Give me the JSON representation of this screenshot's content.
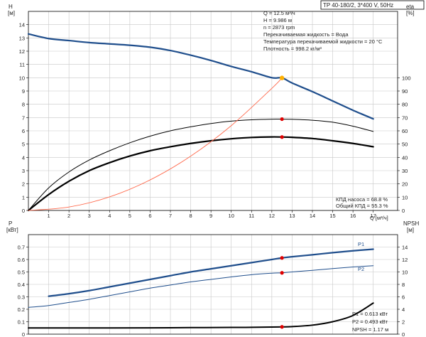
{
  "title_box": "TP 40-180/2, 3*400 V, 50Hz",
  "colors": {
    "head": "#1f4e8c",
    "eta": "#000000",
    "power": "#1f4e8c",
    "system": "#ff6a4d",
    "op_point": "#e00000",
    "op_point_head": "#ffb000",
    "grid": "#c8c8c8",
    "axis": "#000000"
  },
  "top": {
    "ylabel_unit": "H\n[м]",
    "y2label_unit": "eta\n[%]",
    "xlabel": "Q [м³/ч]",
    "info": [
      "Q = 12.5 м³/ч",
      "H = 9.986 м",
      "n = 2873 rpm",
      "Перекачиваемая жидкость = Вода",
      "Температура перекачиваемой жидкости = 20 °C",
      "Плотность = 998.2 кг/м³"
    ],
    "eff_info": [
      "КПД насоса = 68.8 %",
      "Общий КПД = 55.3 %"
    ]
  },
  "bottom": {
    "ylabel_unit": "P\n[кВт]",
    "y2label_unit": "NPSH\n[м]",
    "info": [
      "P1 = 0.613 кВт",
      "P2 = 0.493 кВт",
      "NPSH = 1.17 м"
    ],
    "label_p1": "P1",
    "label_p2": "P2"
  },
  "chart_data": [
    {
      "type": "line",
      "title": "TP 40-180/2, 3*400 V, 50Hz",
      "xlabel": "Q [м³/ч]",
      "ylabel": "H [м]",
      "y2label": "eta [%]",
      "xlim": [
        0,
        18.2
      ],
      "ylim": [
        0,
        15
      ],
      "y2lim": [
        0,
        150
      ],
      "x_ticks": [
        1,
        2,
        3,
        4,
        5,
        6,
        7,
        8,
        9,
        10,
        11,
        12,
        13,
        14,
        15,
        16,
        17
      ],
      "y_ticks": [
        0,
        1,
        2,
        3,
        4,
        5,
        6,
        7,
        8,
        9,
        10,
        11,
        12,
        13,
        14
      ],
      "y2_ticks": [
        0,
        10,
        20,
        30,
        40,
        50,
        60,
        70,
        80,
        90,
        100
      ],
      "grid": true,
      "series": [
        {
          "name": "H",
          "axis": "y",
          "x": [
            0,
            1,
            2,
            3,
            4,
            5,
            6,
            7,
            8,
            9,
            10,
            11,
            12,
            12.5,
            13,
            14,
            15,
            16,
            17
          ],
          "y": [
            13.3,
            12.95,
            12.8,
            12.65,
            12.55,
            12.45,
            12.3,
            12.05,
            11.7,
            11.3,
            10.85,
            10.45,
            10.0,
            9.986,
            9.6,
            8.95,
            8.25,
            7.55,
            6.9
          ]
        },
        {
          "name": "eta pump",
          "axis": "y2",
          "x": [
            0,
            1,
            2,
            3,
            4,
            5,
            6,
            7,
            8,
            9,
            10,
            11,
            12,
            12.5,
            13,
            14,
            15,
            16,
            17
          ],
          "y": [
            0,
            17,
            29,
            38,
            45,
            51,
            56,
            60,
            63,
            65.5,
            67.3,
            68.3,
            68.8,
            68.8,
            68.7,
            68,
            66.5,
            63.5,
            59.5
          ]
        },
        {
          "name": "eta total",
          "axis": "y2",
          "x": [
            0,
            1,
            2,
            3,
            4,
            5,
            6,
            7,
            8,
            9,
            10,
            11,
            12,
            12.5,
            13,
            14,
            15,
            16,
            17
          ],
          "y": [
            0,
            12,
            22,
            30,
            36,
            41,
            45,
            48,
            50.5,
            52.5,
            54,
            55,
            55.4,
            55.3,
            55.1,
            54.2,
            52.5,
            50.5,
            48
          ]
        },
        {
          "name": "system",
          "axis": "y",
          "x": [
            0,
            2,
            4,
            6,
            8,
            10,
            12,
            12.5
          ],
          "y": [
            0,
            0.26,
            1.02,
            2.3,
            4.09,
            6.39,
            9.2,
            9.986
          ]
        }
      ],
      "op_point": {
        "x": 12.5,
        "H": 9.986,
        "eta_pump": 68.8,
        "eta_total": 55.3
      }
    },
    {
      "type": "line",
      "xlabel": "Q [м³/ч]",
      "ylabel": "P [кВт]",
      "y2label": "NPSH [м]",
      "xlim": [
        0,
        18.2
      ],
      "ylim": [
        0,
        0.8
      ],
      "y2lim": [
        0,
        16
      ],
      "x_ticks": [
        1,
        2,
        3,
        4,
        5,
        6,
        7,
        8,
        9,
        10,
        11,
        12,
        13,
        14,
        15,
        16,
        17
      ],
      "y_ticks": [
        0,
        0.1,
        0.2,
        0.3,
        0.4,
        0.5,
        0.6,
        0.7
      ],
      "y2_ticks": [
        0,
        2,
        4,
        6,
        8,
        10,
        12,
        14
      ],
      "grid": true,
      "series": [
        {
          "name": "P1",
          "axis": "y",
          "x": [
            1,
            2,
            3,
            4,
            5,
            6,
            7,
            8,
            9,
            10,
            11,
            12,
            12.5,
            13,
            14,
            15,
            16,
            17
          ],
          "y": [
            0.305,
            0.325,
            0.35,
            0.38,
            0.41,
            0.44,
            0.47,
            0.5,
            0.525,
            0.55,
            0.575,
            0.6,
            0.613,
            0.622,
            0.638,
            0.655,
            0.67,
            0.683
          ]
        },
        {
          "name": "P2",
          "axis": "y",
          "x": [
            0,
            1,
            2,
            3,
            4,
            5,
            6,
            7,
            8,
            9,
            10,
            11,
            12,
            12.5,
            13,
            14,
            15,
            16,
            17
          ],
          "y": [
            0.215,
            0.23,
            0.255,
            0.28,
            0.31,
            0.34,
            0.37,
            0.395,
            0.42,
            0.44,
            0.46,
            0.478,
            0.49,
            0.493,
            0.5,
            0.513,
            0.527,
            0.54,
            0.55
          ]
        },
        {
          "name": "NPSH",
          "axis": "y2",
          "x": [
            0,
            2,
            4,
            6,
            8,
            10,
            11,
            12,
            12.5,
            13,
            14,
            15,
            16,
            17
          ],
          "y": [
            1.0,
            1.0,
            1.0,
            1.02,
            1.05,
            1.08,
            1.1,
            1.14,
            1.17,
            1.22,
            1.45,
            2.0,
            3.0,
            5.0
          ]
        }
      ],
      "op_point": {
        "x": 12.5,
        "P1": 0.613,
        "P2": 0.493,
        "NPSH": 1.17
      }
    }
  ]
}
